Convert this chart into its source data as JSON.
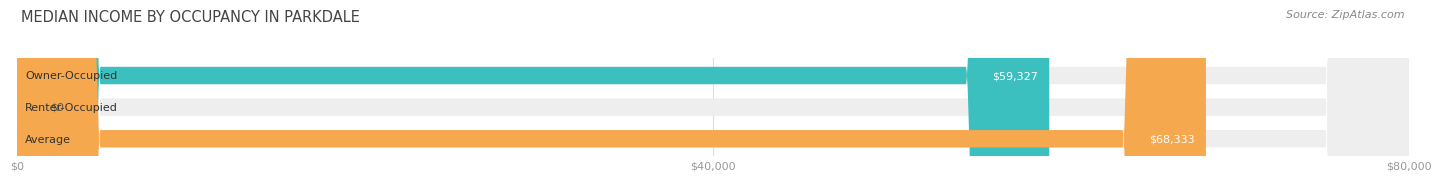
{
  "title": "MEDIAN INCOME BY OCCUPANCY IN PARKDALE",
  "source": "Source: ZipAtlas.com",
  "categories": [
    "Owner-Occupied",
    "Renter-Occupied",
    "Average"
  ],
  "values": [
    59327,
    0,
    68333
  ],
  "bar_colors": [
    "#3bbfbf",
    "#c9b8d8",
    "#f5a84e"
  ],
  "bar_labels": [
    "$59,327",
    "$0",
    "$68,333"
  ],
  "xlim": [
    0,
    80000
  ],
  "xtick_values": [
    0,
    40000,
    80000
  ],
  "xtick_labels": [
    "$0",
    "$40,000",
    "$80,000"
  ],
  "background_color": "#ffffff",
  "bar_height": 0.55,
  "title_fontsize": 10.5,
  "source_fontsize": 8,
  "label_fontsize": 8,
  "tick_fontsize": 8,
  "label_color_inside": "#ffffff",
  "label_color_zero": "#555555",
  "grid_color": "#dddddd",
  "bg_bar_color": "#eeeeee"
}
